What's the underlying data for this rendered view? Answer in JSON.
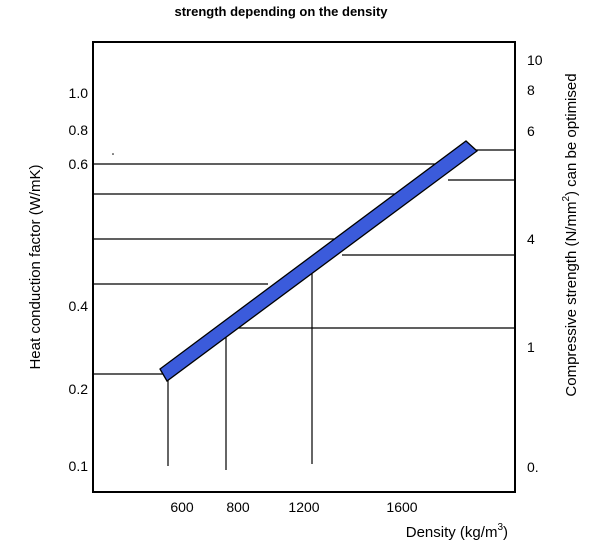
{
  "chart_data": {
    "type": "line",
    "title": "strength depending on the density",
    "xlabel": "Density (kg/m",
    "xlabel_sup": "3",
    "xlabel_tail": ")",
    "ylabel_left": "Heat conduction factor (W/mK)",
    "ylabel_right": "Compressive strength (N/mm",
    "ylabel_right_sup": "2",
    "ylabel_right_tail": ") can be optimised",
    "x_ticks": [
      "600",
      "800",
      "1200",
      "1600"
    ],
    "x_tick_values": [
      600,
      800,
      1200,
      1600
    ],
    "xlim": [
      300,
      2000
    ],
    "y_left_ticks": [
      "1.0",
      "0.8",
      "0.6",
      "0.4",
      "0.2",
      "0.1"
    ],
    "y_right_ticks": [
      "10",
      "8",
      "6",
      "4",
      "1",
      "0."
    ],
    "grid": false,
    "series": [
      {
        "color": "#3b5bdb",
        "x": [
          600,
          1850
        ],
        "y_heat_conduction": [
          0.21,
          0.65
        ],
        "y_compressive_strength": [
          0.8,
          6.2
        ]
      }
    ],
    "reference_lines_density": [
      600,
      800,
      1200
    ]
  }
}
